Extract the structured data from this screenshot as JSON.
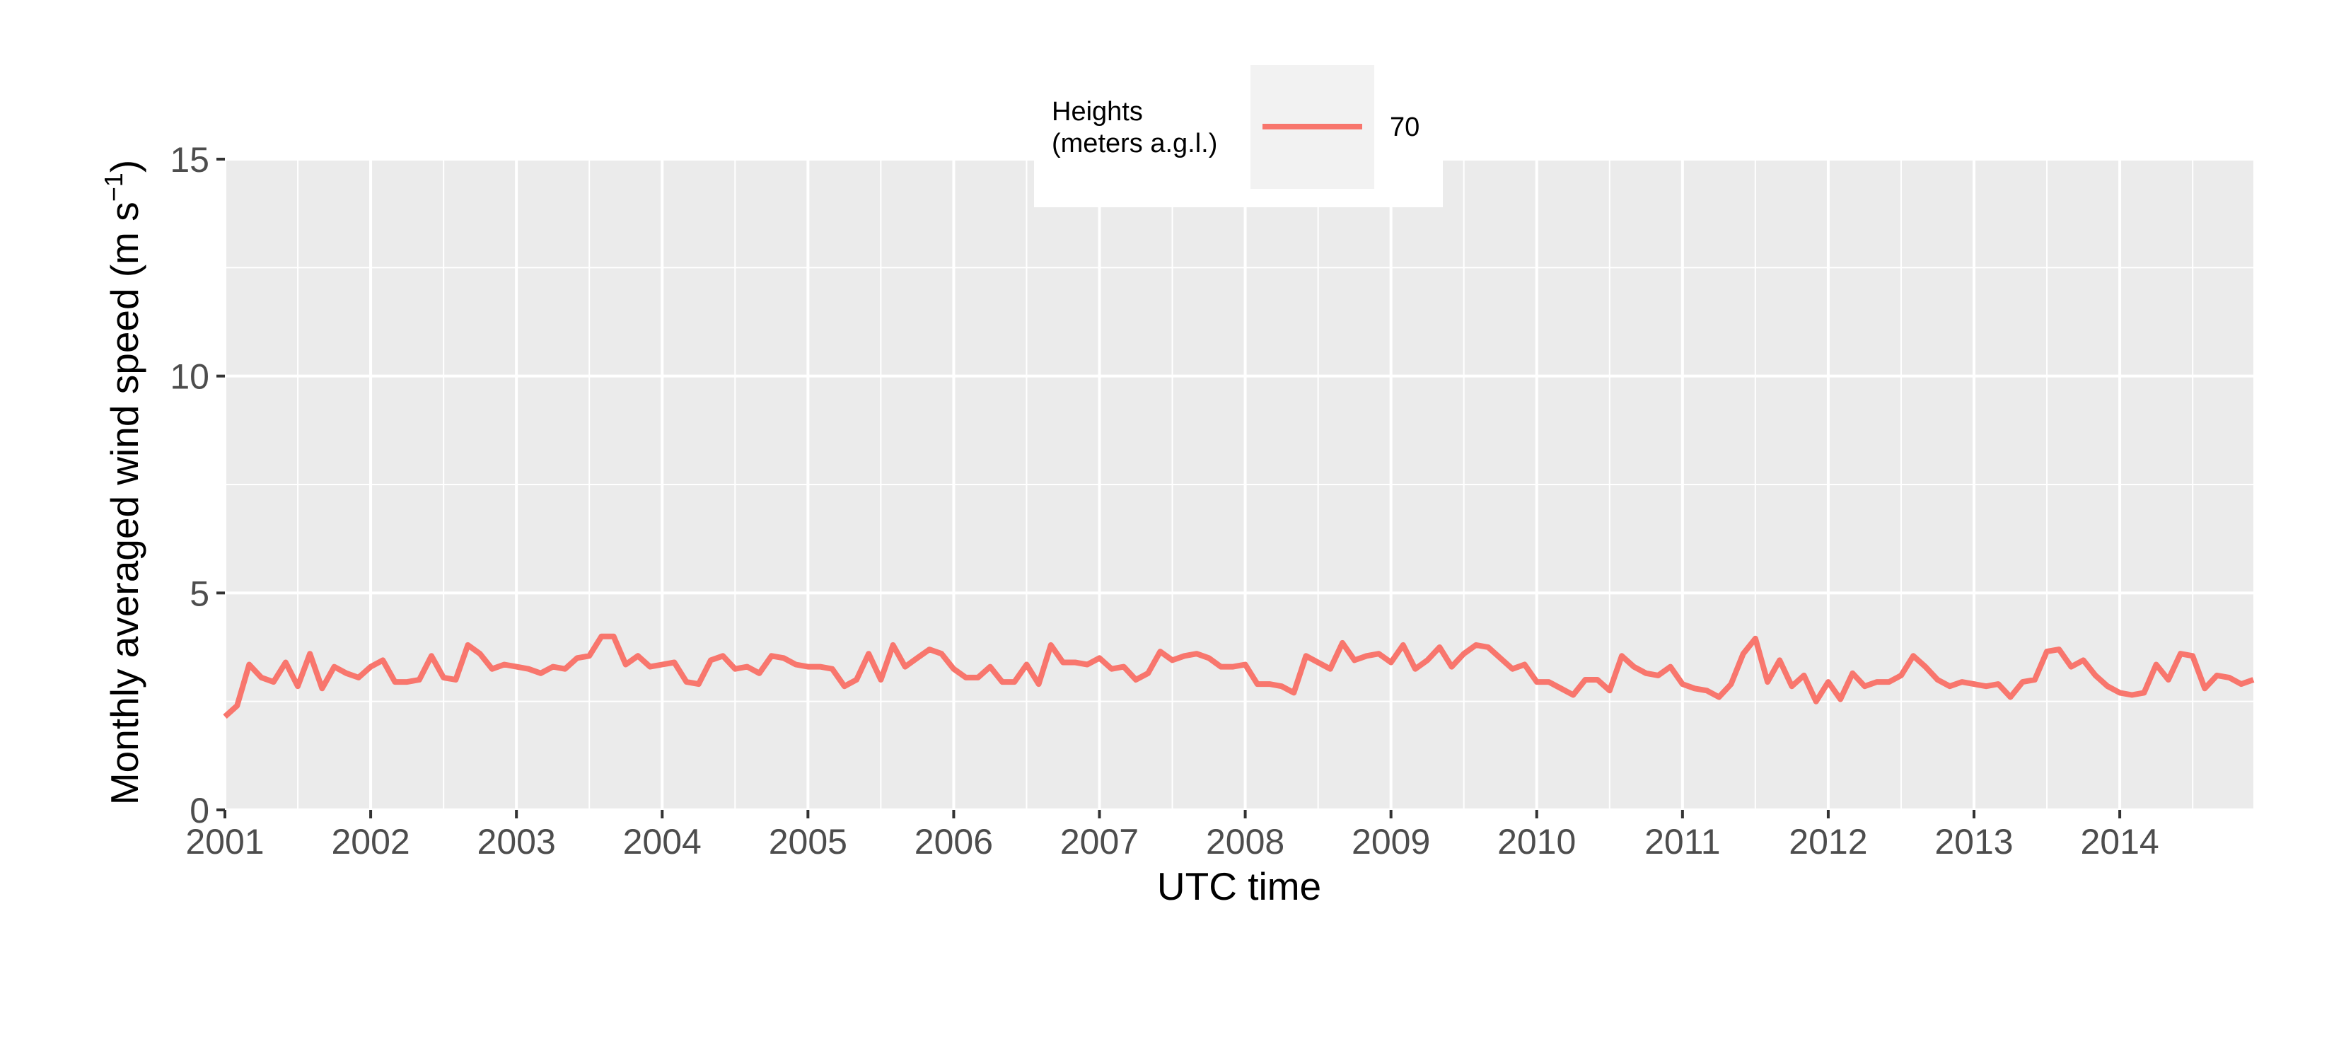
{
  "chart_data": {
    "type": "line",
    "title": "",
    "xlabel": "UTC time",
    "ylabel": "Monthly averaged wind speed (m s",
    "ylabel_sup": "−1",
    "ylabel_close": ")",
    "xlim": [
      "2001-01",
      "2014-12"
    ],
    "ylim": [
      0,
      15
    ],
    "x_tick_labels": [
      "2001",
      "2002",
      "2003",
      "2004",
      "2005",
      "2006",
      "2007",
      "2008",
      "2009",
      "2010",
      "2011",
      "2012",
      "2013",
      "2014"
    ],
    "y_tick_labels": [
      "0",
      "5",
      "10",
      "15"
    ],
    "grid": true,
    "legend": {
      "title_line1": "Heights",
      "title_line2": "(meters a.g.l.)",
      "position": "top",
      "entries": [
        "70"
      ]
    },
    "colors": {
      "series": "#F8766D",
      "panel": "#EBEBEB",
      "grid": "#FFFFFF",
      "legend_key": "#F2F2F2"
    },
    "series": [
      {
        "name": "70",
        "x_start": "2001-01",
        "x_step": "1 month",
        "values": [
          2.15,
          2.4,
          3.35,
          3.05,
          2.95,
          3.4,
          2.85,
          3.6,
          2.8,
          3.3,
          3.15,
          3.05,
          3.3,
          3.45,
          2.95,
          2.95,
          3.0,
          3.55,
          3.05,
          3.0,
          3.8,
          3.6,
          3.25,
          3.35,
          3.3,
          3.25,
          3.15,
          3.3,
          3.25,
          3.5,
          3.55,
          4.0,
          4.0,
          3.35,
          3.55,
          3.3,
          3.35,
          3.4,
          2.95,
          2.9,
          3.45,
          3.55,
          3.25,
          3.3,
          3.15,
          3.55,
          3.5,
          3.35,
          3.3,
          3.3,
          3.25,
          2.85,
          3.0,
          3.6,
          3.0,
          3.8,
          3.3,
          3.5,
          3.7,
          3.6,
          3.25,
          3.05,
          3.05,
          3.3,
          2.95,
          2.95,
          3.35,
          2.9,
          3.8,
          3.4,
          3.4,
          3.35,
          3.5,
          3.25,
          3.3,
          3.0,
          3.15,
          3.65,
          3.45,
          3.55,
          3.6,
          3.5,
          3.3,
          3.3,
          3.35,
          2.9,
          2.9,
          2.85,
          2.7,
          3.55,
          3.4,
          3.25,
          3.85,
          3.45,
          3.55,
          3.6,
          3.4,
          3.8,
          3.25,
          3.45,
          3.75,
          3.3,
          3.6,
          3.8,
          3.75,
          3.5,
          3.25,
          3.35,
          2.95,
          2.95,
          2.8,
          2.65,
          3.0,
          3.0,
          2.75,
          3.55,
          3.3,
          3.15,
          3.1,
          3.3,
          2.9,
          2.8,
          2.75,
          2.6,
          2.9,
          3.6,
          3.95,
          2.95,
          3.45,
          2.85,
          3.1,
          2.5,
          2.95,
          2.55,
          3.15,
          2.85,
          2.95,
          2.95,
          3.1,
          3.55,
          3.3,
          3.0,
          2.85,
          2.95,
          2.9,
          2.85,
          2.9,
          2.6,
          2.95,
          3.0,
          3.65,
          3.7,
          3.3,
          3.45,
          3.1,
          2.85,
          2.7,
          2.65,
          2.7,
          3.35,
          3.0,
          3.6,
          3.55,
          2.8,
          3.1,
          3.05,
          2.9,
          3.0
        ]
      }
    ]
  }
}
